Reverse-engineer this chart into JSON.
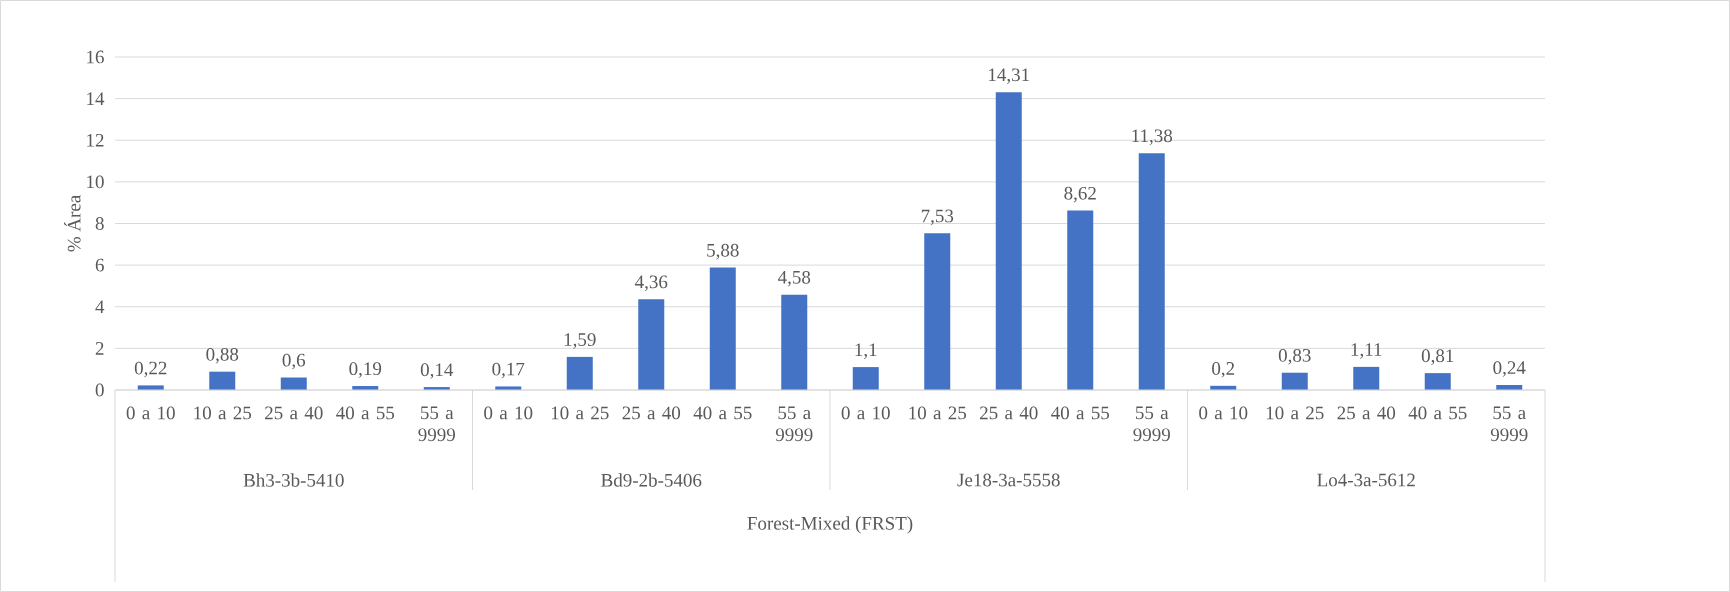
{
  "chart_data": {
    "type": "bar",
    "ylabel": "% Área",
    "xlabel": "Forest-Mixed (FRST)",
    "categories": [
      "0 a 10",
      "10 a 25",
      "25 a 40",
      "40 a 55",
      "55 a 9999",
      "0 a 10",
      "10 a 25",
      "25 a 40",
      "40 a 55",
      "55 a 9999",
      "0 a 10",
      "10 a 25",
      "25 a 40",
      "40 a 55",
      "55 a 9999",
      "0 a 10",
      "10 a 25",
      "25 a 40",
      "40 a 55",
      "55 a 9999"
    ],
    "values": [
      0.22,
      0.88,
      0.6,
      0.19,
      0.14,
      0.17,
      1.59,
      4.36,
      5.88,
      4.58,
      1.1,
      7.53,
      14.31,
      8.62,
      11.38,
      0.2,
      0.83,
      1.11,
      0.81,
      0.24
    ],
    "value_labels": [
      "0,22",
      "0,88",
      "0,6",
      "0,19",
      "0,14",
      "0,17",
      "1,59",
      "4,36",
      "5,88",
      "4,58",
      "1,1",
      "7,53",
      "14,31",
      "8,62",
      "11,38",
      "0,2",
      "0,83",
      "1,11",
      "0,81",
      "0,24"
    ],
    "annotations": [
      "Bh3-3b-5410",
      "Bd9-2b-5406",
      "Je18-3a-5558",
      "Lo4-3a-5612"
    ],
    "color": "#4472c4",
    "ylim": [
      0,
      16
    ],
    "yticks": [
      0,
      2,
      4,
      6,
      8,
      10,
      12,
      14,
      16
    ],
    "grid": "y"
  }
}
